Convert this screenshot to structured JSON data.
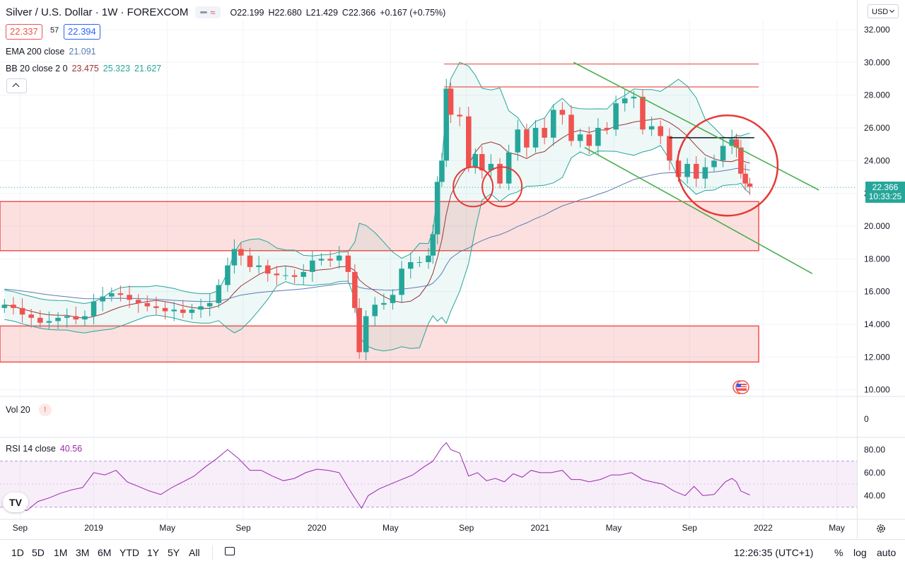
{
  "header": {
    "symbol_title": "Silver / U.S. Dollar · 1W · FOREXCOM",
    "ohlc": {
      "o": "O22.199",
      "h": "H22.680",
      "l": "L21.429",
      "c": "C22.366",
      "change": "+0.167 (+0.75%)"
    },
    "bid": "22.337",
    "spread": "57",
    "ask": "22.394",
    "currency": "USD"
  },
  "indicators": {
    "ema_label": "EMA 200 close",
    "ema_value": "21.091",
    "bb_label": "BB 20 close 2 0",
    "bb_basis": "23.475",
    "bb_upper": "25.323",
    "bb_lower": "21.627",
    "vol_label": "Vol 20",
    "vol_warning": "!",
    "rsi_label": "RSI 14 close",
    "rsi_value": "40.56"
  },
  "price_tag": {
    "price": "22.366",
    "countdown": "10:33:25"
  },
  "volume_axis_label": "0",
  "rsi_axis": [
    "80.00",
    "60.00",
    "40.00"
  ],
  "logo": "TV",
  "bottom_bar": {
    "ranges": [
      "1D",
      "5D",
      "1M",
      "3M",
      "6M",
      "YTD",
      "1Y",
      "5Y",
      "All"
    ],
    "clock": "12:26:35 (UTC+1)",
    "percent": "%",
    "log": "log",
    "auto": "auto"
  },
  "colors": {
    "up": "#26a69a",
    "down": "#ef5350",
    "ema": "#5b7bb4",
    "bb_basis": "#9c3434",
    "bb_band": "#26a69a",
    "rsi": "#9c27b0",
    "zones": "#ef5350",
    "trendline": "#4caf50"
  },
  "chart_data": [
    {
      "type": "candlestick",
      "title": "Silver / U.S. Dollar · 1W · FOREXCOM",
      "y_ticks": [
        "32.000",
        "30.000",
        "28.000",
        "26.000",
        "24.000",
        "22.000",
        "20.000",
        "18.000",
        "16.000",
        "14.000",
        "12.000",
        "10.000"
      ],
      "x_ticks": [
        "Sep",
        "2019",
        "May",
        "Sep",
        "2020",
        "May",
        "Sep",
        "2021",
        "May",
        "Sep",
        "2022",
        "May"
      ],
      "x_range": [
        2018.58,
        2022.42
      ],
      "y_range": [
        9.6,
        32.6
      ],
      "last_close": 22.366,
      "price_points": [
        [
          2018.6,
          15.2
        ],
        [
          2018.64,
          15.0
        ],
        [
          2018.68,
          14.6
        ],
        [
          2018.72,
          14.4
        ],
        [
          2018.76,
          14.1
        ],
        [
          2018.8,
          14.2
        ],
        [
          2018.84,
          14.4
        ],
        [
          2018.88,
          14.5
        ],
        [
          2018.92,
          14.3
        ],
        [
          2018.96,
          14.5
        ],
        [
          2019.0,
          15.4
        ],
        [
          2019.04,
          15.7
        ],
        [
          2019.08,
          15.9
        ],
        [
          2019.12,
          15.8
        ],
        [
          2019.16,
          15.5
        ],
        [
          2019.2,
          15.3
        ],
        [
          2019.24,
          15.1
        ],
        [
          2019.28,
          15.0
        ],
        [
          2019.32,
          14.8
        ],
        [
          2019.36,
          14.9
        ],
        [
          2019.4,
          14.7
        ],
        [
          2019.44,
          14.9
        ],
        [
          2019.48,
          15.1
        ],
        [
          2019.52,
          15.3
        ],
        [
          2019.56,
          16.4
        ],
        [
          2019.6,
          17.6
        ],
        [
          2019.63,
          18.6
        ],
        [
          2019.66,
          18.2
        ],
        [
          2019.7,
          17.5
        ],
        [
          2019.74,
          17.6
        ],
        [
          2019.78,
          17.1
        ],
        [
          2019.82,
          17.0
        ],
        [
          2019.86,
          17.0
        ],
        [
          2019.9,
          16.9
        ],
        [
          2019.94,
          17.2
        ],
        [
          2019.98,
          17.9
        ],
        [
          2020.02,
          18.0
        ],
        [
          2020.06,
          17.9
        ],
        [
          2020.1,
          18.2
        ],
        [
          2020.14,
          17.2
        ],
        [
          2020.17,
          15.0
        ],
        [
          2020.19,
          12.3
        ],
        [
          2020.22,
          14.5
        ],
        [
          2020.26,
          15.2
        ],
        [
          2020.3,
          15.3
        ],
        [
          2020.34,
          15.8
        ],
        [
          2020.38,
          17.4
        ],
        [
          2020.42,
          17.8
        ],
        [
          2020.46,
          17.8
        ],
        [
          2020.5,
          18.2
        ],
        [
          2020.52,
          19.5
        ],
        [
          2020.54,
          22.7
        ],
        [
          2020.56,
          24.0
        ],
        [
          2020.58,
          28.4
        ],
        [
          2020.6,
          26.8
        ],
        [
          2020.64,
          26.7
        ],
        [
          2020.68,
          23.6
        ],
        [
          2020.71,
          24.4
        ],
        [
          2020.74,
          23.4
        ],
        [
          2020.78,
          23.8
        ],
        [
          2020.82,
          22.6
        ],
        [
          2020.86,
          24.5
        ],
        [
          2020.9,
          25.9
        ],
        [
          2020.94,
          24.8
        ],
        [
          2020.98,
          26.0
        ],
        [
          2021.02,
          25.4
        ],
        [
          2021.06,
          27.1
        ],
        [
          2021.1,
          26.8
        ],
        [
          2021.14,
          25.2
        ],
        [
          2021.18,
          25.6
        ],
        [
          2021.22,
          24.9
        ],
        [
          2021.26,
          26.0
        ],
        [
          2021.3,
          25.9
        ],
        [
          2021.34,
          27.5
        ],
        [
          2021.38,
          27.8
        ],
        [
          2021.42,
          27.9
        ],
        [
          2021.46,
          25.9
        ],
        [
          2021.5,
          26.1
        ],
        [
          2021.54,
          25.5
        ],
        [
          2021.58,
          24.0
        ],
        [
          2021.62,
          23.0
        ],
        [
          2021.66,
          23.8
        ],
        [
          2021.7,
          22.9
        ],
        [
          2021.74,
          23.6
        ],
        [
          2021.78,
          24.0
        ],
        [
          2021.82,
          24.9
        ],
        [
          2021.86,
          25.3
        ],
        [
          2021.88,
          24.8
        ],
        [
          2021.9,
          23.2
        ],
        [
          2021.92,
          22.6
        ],
        [
          2021.94,
          22.4
        ]
      ],
      "series": [
        {
          "name": "EMA 200 close",
          "last_value": 21.091
        },
        {
          "name": "BB 20 close 2 0",
          "last_values": [
            23.475,
            25.323,
            21.627
          ]
        }
      ],
      "zones": [
        [
          18.5,
          21.5
        ],
        [
          11.7,
          13.9
        ]
      ],
      "horizontal_lines": [
        29.9,
        28.5,
        25.4
      ],
      "channel_lines": [
        [
          [
            2021.15,
            30.0
          ],
          [
            2022.25,
            22.2
          ]
        ],
        [
          [
            2021.2,
            24.8
          ],
          [
            2022.22,
            17.1
          ]
        ]
      ]
    },
    {
      "type": "line",
      "title": "RSI 14 close",
      "y_ticks": [
        "80.00",
        "60.00",
        "40.00"
      ],
      "band": [
        30,
        70
      ],
      "last_value": 40.56,
      "series": [
        {
          "name": "RSI 14 close",
          "points": [
            [
              2018.6,
              33
            ],
            [
              2018.65,
              30
            ],
            [
              2018.7,
              27
            ],
            [
              2018.75,
              35
            ],
            [
              2018.8,
              38
            ],
            [
              2018.85,
              42
            ],
            [
              2018.9,
              45
            ],
            [
              2018.95,
              47
            ],
            [
              2019.0,
              60
            ],
            [
              2019.05,
              58
            ],
            [
              2019.1,
              62
            ],
            [
              2019.15,
              52
            ],
            [
              2019.2,
              48
            ],
            [
              2019.25,
              44
            ],
            [
              2019.3,
              41
            ],
            [
              2019.35,
              47
            ],
            [
              2019.4,
              52
            ],
            [
              2019.45,
              57
            ],
            [
              2019.5,
              65
            ],
            [
              2019.55,
              72
            ],
            [
              2019.6,
              80
            ],
            [
              2019.65,
              72
            ],
            [
              2019.7,
              62
            ],
            [
              2019.75,
              62
            ],
            [
              2019.8,
              57
            ],
            [
              2019.85,
              53
            ],
            [
              2019.9,
              55
            ],
            [
              2019.95,
              60
            ],
            [
              2020.0,
              63
            ],
            [
              2020.05,
              62
            ],
            [
              2020.1,
              60
            ],
            [
              2020.14,
              47
            ],
            [
              2020.17,
              38
            ],
            [
              2020.2,
              29
            ],
            [
              2020.23,
              40
            ],
            [
              2020.28,
              46
            ],
            [
              2020.33,
              50
            ],
            [
              2020.38,
              54
            ],
            [
              2020.43,
              58
            ],
            [
              2020.48,
              65
            ],
            [
              2020.52,
              70
            ],
            [
              2020.56,
              82
            ],
            [
              2020.58,
              86
            ],
            [
              2020.6,
              80
            ],
            [
              2020.64,
              77
            ],
            [
              2020.68,
              57
            ],
            [
              2020.72,
              60
            ],
            [
              2020.76,
              53
            ],
            [
              2020.8,
              55
            ],
            [
              2020.84,
              52
            ],
            [
              2020.88,
              59
            ],
            [
              2020.92,
              56
            ],
            [
              2020.96,
              62
            ],
            [
              2021.0,
              60
            ],
            [
              2021.05,
              60
            ],
            [
              2021.1,
              62
            ],
            [
              2021.14,
              54
            ],
            [
              2021.18,
              54
            ],
            [
              2021.22,
              52
            ],
            [
              2021.27,
              54
            ],
            [
              2021.32,
              58
            ],
            [
              2021.36,
              58
            ],
            [
              2021.41,
              60
            ],
            [
              2021.46,
              54
            ],
            [
              2021.5,
              52
            ],
            [
              2021.55,
              50
            ],
            [
              2021.6,
              44
            ],
            [
              2021.65,
              40
            ],
            [
              2021.69,
              48
            ],
            [
              2021.73,
              40
            ],
            [
              2021.78,
              41
            ],
            [
              2021.83,
              52
            ],
            [
              2021.86,
              55
            ],
            [
              2021.88,
              52
            ],
            [
              2021.9,
              44
            ],
            [
              2021.94,
              40.56
            ]
          ]
        }
      ]
    }
  ]
}
